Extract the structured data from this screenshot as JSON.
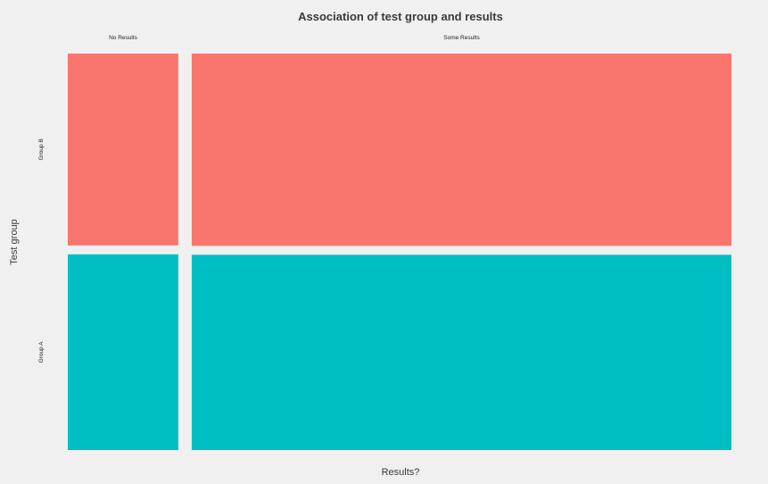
{
  "chart_data": {
    "type": "mosaic",
    "title": "Association of test group and results",
    "xlabel": "Results?",
    "ylabel": "Test group",
    "x_categories": [
      "No Results",
      "Some Results"
    ],
    "y_categories": [
      "Group B",
      "Group A"
    ],
    "x_proportions": [
      0.17,
      0.83
    ],
    "cells": [
      {
        "x": "No Results",
        "y": "Group B",
        "proportion_within_x": 0.495,
        "color": "#f8766d"
      },
      {
        "x": "No Results",
        "y": "Group A",
        "proportion_within_x": 0.505,
        "color": "#00bfc4"
      },
      {
        "x": "Some Results",
        "y": "Group B",
        "proportion_within_x": 0.496,
        "color": "#f8766d"
      },
      {
        "x": "Some Results",
        "y": "Group A",
        "proportion_within_x": 0.504,
        "color": "#00bfc4"
      }
    ],
    "grid": false,
    "legend": "none"
  },
  "colors": {
    "background": "#f0f0f0",
    "group_b": "#f8766d",
    "group_a": "#00bfc4"
  }
}
